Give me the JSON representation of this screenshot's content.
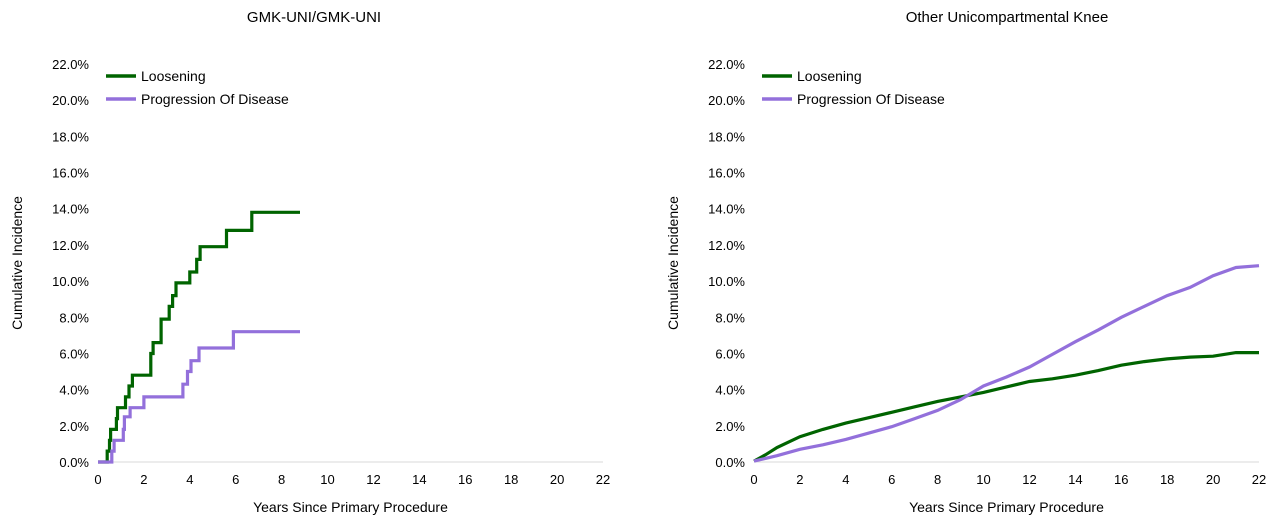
{
  "chart_data": [
    {
      "type": "line",
      "title": "GMK-UNI/GMK-UNI",
      "xlabel": "Years Since Primary Procedure",
      "ylabel": "Cumulative Incidence",
      "xlim": [
        0,
        22
      ],
      "ylim": [
        0,
        22
      ],
      "xticks": [
        "0",
        "2",
        "4",
        "6",
        "8",
        "10",
        "12",
        "14",
        "16",
        "18",
        "20",
        "22"
      ],
      "yticks": [
        "0.0%",
        "2.0%",
        "4.0%",
        "6.0%",
        "8.0%",
        "10.0%",
        "12.0%",
        "14.0%",
        "16.0%",
        "18.0%",
        "20.0%",
        "22.0%"
      ],
      "grid": false,
      "legend_position": "top-left",
      "step": true,
      "series": [
        {
          "name": "Loosening",
          "color": "#006400",
          "points": [
            [
              0,
              0
            ],
            [
              0.4,
              0
            ],
            [
              0.4,
              0.6
            ],
            [
              0.5,
              0.6
            ],
            [
              0.5,
              1.2
            ],
            [
              0.55,
              1.2
            ],
            [
              0.55,
              1.8
            ],
            [
              0.8,
              1.8
            ],
            [
              0.8,
              2.4
            ],
            [
              0.85,
              2.4
            ],
            [
              0.85,
              3.0
            ],
            [
              1.2,
              3.0
            ],
            [
              1.2,
              3.6
            ],
            [
              1.35,
              3.6
            ],
            [
              1.35,
              4.2
            ],
            [
              1.5,
              4.2
            ],
            [
              1.5,
              4.8
            ],
            [
              2.3,
              4.8
            ],
            [
              2.3,
              6.0
            ],
            [
              2.4,
              6.0
            ],
            [
              2.4,
              6.6
            ],
            [
              2.75,
              6.6
            ],
            [
              2.75,
              7.9
            ],
            [
              3.1,
              7.9
            ],
            [
              3.1,
              8.6
            ],
            [
              3.25,
              8.6
            ],
            [
              3.25,
              9.2
            ],
            [
              3.4,
              9.2
            ],
            [
              3.4,
              9.9
            ],
            [
              4.0,
              9.9
            ],
            [
              4.0,
              10.5
            ],
            [
              4.3,
              10.5
            ],
            [
              4.3,
              11.2
            ],
            [
              4.45,
              11.2
            ],
            [
              4.45,
              11.9
            ],
            [
              5.6,
              11.9
            ],
            [
              5.6,
              12.8
            ],
            [
              6.7,
              12.8
            ],
            [
              6.7,
              13.8
            ],
            [
              8.8,
              13.8
            ]
          ]
        },
        {
          "name": "Progression Of Disease",
          "color": "#9370DB",
          "points": [
            [
              0,
              0
            ],
            [
              0.6,
              0
            ],
            [
              0.6,
              0.6
            ],
            [
              0.7,
              0.6
            ],
            [
              0.7,
              1.2
            ],
            [
              1.1,
              1.2
            ],
            [
              1.1,
              1.8
            ],
            [
              1.15,
              1.8
            ],
            [
              1.15,
              2.5
            ],
            [
              1.4,
              2.5
            ],
            [
              1.4,
              3.0
            ],
            [
              2.0,
              3.0
            ],
            [
              2.0,
              3.6
            ],
            [
              3.7,
              3.6
            ],
            [
              3.7,
              4.3
            ],
            [
              3.9,
              4.3
            ],
            [
              3.9,
              5.0
            ],
            [
              4.05,
              5.0
            ],
            [
              4.05,
              5.6
            ],
            [
              4.4,
              5.6
            ],
            [
              4.4,
              6.3
            ],
            [
              5.9,
              6.3
            ],
            [
              5.9,
              7.2
            ],
            [
              8.8,
              7.2
            ]
          ]
        }
      ]
    },
    {
      "type": "line",
      "title": "Other Unicompartmental Knee",
      "xlabel": "Years Since Primary Procedure",
      "ylabel": "Cumulative Incidence",
      "xlim": [
        0,
        22
      ],
      "ylim": [
        0,
        22
      ],
      "xticks": [
        "0",
        "2",
        "4",
        "6",
        "8",
        "10",
        "12",
        "14",
        "16",
        "18",
        "20",
        "22"
      ],
      "yticks": [
        "0.0%",
        "2.0%",
        "4.0%",
        "6.0%",
        "8.0%",
        "10.0%",
        "12.0%",
        "14.0%",
        "16.0%",
        "18.0%",
        "20.0%",
        "22.0%"
      ],
      "grid": false,
      "legend_position": "top-left",
      "step": false,
      "series": [
        {
          "name": "Loosening",
          "color": "#006400",
          "points": [
            [
              0,
              0.05
            ],
            [
              0.5,
              0.4
            ],
            [
              1,
              0.8
            ],
            [
              2,
              1.4
            ],
            [
              3,
              1.8
            ],
            [
              4,
              2.15
            ],
            [
              5,
              2.45
            ],
            [
              6,
              2.75
            ],
            [
              7,
              3.05
            ],
            [
              8,
              3.35
            ],
            [
              9,
              3.6
            ],
            [
              10,
              3.85
            ],
            [
              11,
              4.15
            ],
            [
              12,
              4.45
            ],
            [
              13,
              4.6
            ],
            [
              14,
              4.8
            ],
            [
              15,
              5.05
            ],
            [
              16,
              5.35
            ],
            [
              17,
              5.55
            ],
            [
              18,
              5.7
            ],
            [
              19,
              5.8
            ],
            [
              20,
              5.85
            ],
            [
              21,
              6.05
            ],
            [
              22,
              6.05
            ]
          ]
        },
        {
          "name": "Progression Of Disease",
          "color": "#9370DB",
          "points": [
            [
              0,
              0.05
            ],
            [
              1,
              0.35
            ],
            [
              2,
              0.7
            ],
            [
              3,
              0.95
            ],
            [
              4,
              1.25
            ],
            [
              5,
              1.6
            ],
            [
              6,
              1.95
            ],
            [
              7,
              2.4
            ],
            [
              8,
              2.85
            ],
            [
              9,
              3.45
            ],
            [
              10,
              4.2
            ],
            [
              11,
              4.7
            ],
            [
              12,
              5.25
            ],
            [
              13,
              5.95
            ],
            [
              14,
              6.65
            ],
            [
              15,
              7.3
            ],
            [
              16,
              8.0
            ],
            [
              17,
              8.6
            ],
            [
              18,
              9.2
            ],
            [
              19,
              9.65
            ],
            [
              20,
              10.3
            ],
            [
              21,
              10.75
            ],
            [
              22,
              10.85
            ]
          ]
        }
      ]
    }
  ]
}
